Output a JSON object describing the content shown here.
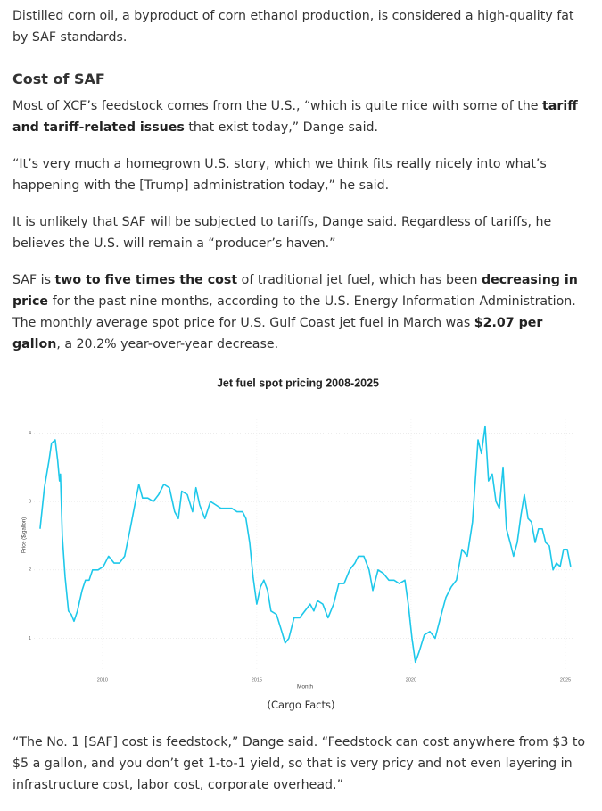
{
  "intro_paragraphs": [
    {
      "runs": [
        {
          "text": "Distilled corn oil, a byproduct of corn ethanol production, is considered a high-quality fat by SAF standards."
        }
      ]
    }
  ],
  "heading": "Cost of SAF",
  "paragraphs": [
    {
      "runs": [
        {
          "text": "Most of XCF’s feedstock comes from the U.S., “which is quite nice with some of the "
        },
        {
          "text": "tariff and tariff-related issues",
          "bold": true
        },
        {
          "text": " that exist today,” Dange said."
        }
      ]
    },
    {
      "runs": [
        {
          "text": "“It’s very much a homegrown U.S. story, which we think fits really nicely into what’s happening with the [Trump] administration today,” he said."
        }
      ]
    },
    {
      "runs": [
        {
          "text": "It is unlikely that SAF will be subjected to tariffs, Dange said. Regardless of tariffs, he believes the U.S. will remain a “producer’s haven.”"
        }
      ]
    },
    {
      "runs": [
        {
          "text": "SAF is "
        },
        {
          "text": "two to five times the cost",
          "bold": true
        },
        {
          "text": " of traditional jet fuel, which has been "
        },
        {
          "text": "decreasing in price",
          "bold": true
        },
        {
          "text": " for the past nine months, according to the U.S. Energy Information Administration. The monthly average spot price for U.S. Gulf Coast jet fuel in March was "
        },
        {
          "text": "$2.07 per gallon",
          "bold": true
        },
        {
          "text": ", a 20.2% year-over-year decrease."
        }
      ]
    }
  ],
  "chart_data": {
    "type": "line",
    "title": "Jet fuel spot pricing 2008-2025",
    "x_label": "Month",
    "y_label": "Price ($/gallon)",
    "color": "#1ec8ea",
    "grid": true,
    "x": [
      2007.98,
      2008.12,
      2008.27,
      2008.35,
      2008.47,
      2008.55,
      2008.61,
      2008.64,
      2008.7,
      2008.79,
      2008.9,
      2008.99,
      2009.08,
      2009.19,
      2009.34,
      2009.45,
      2009.57,
      2009.68,
      2009.86,
      2010.03,
      2010.2,
      2010.38,
      2010.55,
      2010.72,
      2010.9,
      2011.07,
      2011.18,
      2011.3,
      2011.47,
      2011.65,
      2011.82,
      2011.99,
      2012.17,
      2012.34,
      2012.46,
      2012.57,
      2012.75,
      2012.92,
      2013.03,
      2013.15,
      2013.32,
      2013.5,
      2013.67,
      2013.84,
      2014.02,
      2014.19,
      2014.36,
      2014.54,
      2014.65,
      2014.77,
      2014.88,
      2015.0,
      2015.12,
      2015.23,
      2015.35,
      2015.46,
      2015.64,
      2015.81,
      2015.92,
      2016.04,
      2016.21,
      2016.39,
      2016.56,
      2016.73,
      2016.85,
      2016.97,
      2017.14,
      2017.31,
      2017.49,
      2017.66,
      2017.83,
      2018.01,
      2018.18,
      2018.29,
      2018.47,
      2018.64,
      2018.76,
      2018.93,
      2019.1,
      2019.28,
      2019.45,
      2019.62,
      2019.8,
      2019.91,
      2020.03,
      2020.14,
      2020.26,
      2020.43,
      2020.61,
      2020.78,
      2020.95,
      2021.13,
      2021.3,
      2021.47,
      2021.65,
      2021.82,
      2021.99,
      2022.17,
      2022.28,
      2022.4,
      2022.51,
      2022.63,
      2022.75,
      2022.86,
      2022.98,
      2023.09,
      2023.21,
      2023.32,
      2023.44,
      2023.56,
      2023.67,
      2023.79,
      2023.9,
      2024.02,
      2024.13,
      2024.25,
      2024.36,
      2024.48,
      2024.6,
      2024.71,
      2024.83,
      2024.94,
      2025.06,
      2025.17
    ],
    "values": [
      2.6,
      3.2,
      3.6,
      3.85,
      3.9,
      3.6,
      3.3,
      3.4,
      2.5,
      1.9,
      1.4,
      1.35,
      1.25,
      1.4,
      1.7,
      1.85,
      1.85,
      2.0,
      2.0,
      2.05,
      2.2,
      2.1,
      2.1,
      2.2,
      2.6,
      3.0,
      3.25,
      3.05,
      3.05,
      3.0,
      3.1,
      3.25,
      3.2,
      2.85,
      2.75,
      3.15,
      3.1,
      2.85,
      3.2,
      2.95,
      2.75,
      3.0,
      2.95,
      2.9,
      2.9,
      2.9,
      2.85,
      2.85,
      2.75,
      2.4,
      1.9,
      1.5,
      1.75,
      1.85,
      1.7,
      1.4,
      1.35,
      1.1,
      0.93,
      1.0,
      1.3,
      1.3,
      1.4,
      1.5,
      1.4,
      1.55,
      1.5,
      1.3,
      1.5,
      1.8,
      1.8,
      2.0,
      2.1,
      2.2,
      2.2,
      2.0,
      1.7,
      2.0,
      1.95,
      1.85,
      1.85,
      1.8,
      1.85,
      1.5,
      1.0,
      0.65,
      0.8,
      1.05,
      1.1,
      1.0,
      1.3,
      1.6,
      1.75,
      1.85,
      2.3,
      2.2,
      2.7,
      3.9,
      3.7,
      4.1,
      3.3,
      3.4,
      3.0,
      2.9,
      3.5,
      2.6,
      2.4,
      2.2,
      2.4,
      2.8,
      3.1,
      2.75,
      2.7,
      2.4,
      2.6,
      2.6,
      2.4,
      2.35,
      2.0,
      2.1,
      2.05,
      2.3,
      2.3,
      2.05
    ],
    "xlim": [
      2007.78,
      2025.29
    ],
    "ylim": [
      0.55,
      4.2
    ],
    "xticks": [
      2010,
      2015,
      2020,
      2025
    ],
    "yticks": [
      1,
      2,
      3,
      4
    ]
  },
  "caption": "(Cargo Facts)",
  "closing_paragraphs": [
    {
      "runs": [
        {
          "text": "“The No. 1 [SAF] cost is feedstock,” Dange said. “Feedstock can cost anywhere from $3 to $5 a gallon, and you don’t get 1-to-1 yield, so that is very pricy and not even layering in infrastructure cost, labor cost, corporate overhead.”"
        }
      ]
    }
  ]
}
